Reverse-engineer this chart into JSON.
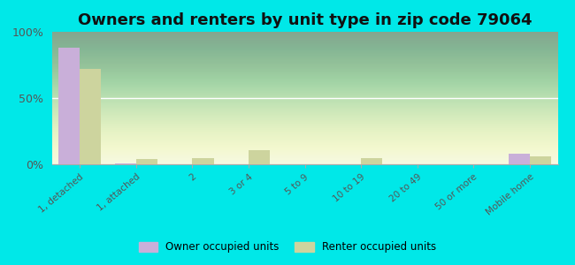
{
  "title": "Owners and renters by unit type in zip code 79064",
  "categories": [
    "1, detached",
    "1, attached",
    "2",
    "3 or 4",
    "5 to 9",
    "10 to 19",
    "20 to 49",
    "50 or more",
    "Mobile home"
  ],
  "owner_values": [
    88,
    1,
    0,
    0,
    0,
    0,
    0,
    0,
    8
  ],
  "renter_values": [
    72,
    4,
    5,
    11,
    0,
    5,
    0,
    0,
    6
  ],
  "owner_color": "#c9afd9",
  "renter_color": "#cdd49e",
  "outer_bg": "#00e8e8",
  "plot_bg_top": "#dde8c0",
  "plot_bg_bottom": "#f0f5e0",
  "ylim": [
    0,
    100
  ],
  "yticks": [
    0,
    50,
    100
  ],
  "ytick_labels": [
    "0%",
    "50%",
    "100%"
  ],
  "legend_owner": "Owner occupied units",
  "legend_renter": "Renter occupied units",
  "title_fontsize": 13,
  "bar_width": 0.38
}
